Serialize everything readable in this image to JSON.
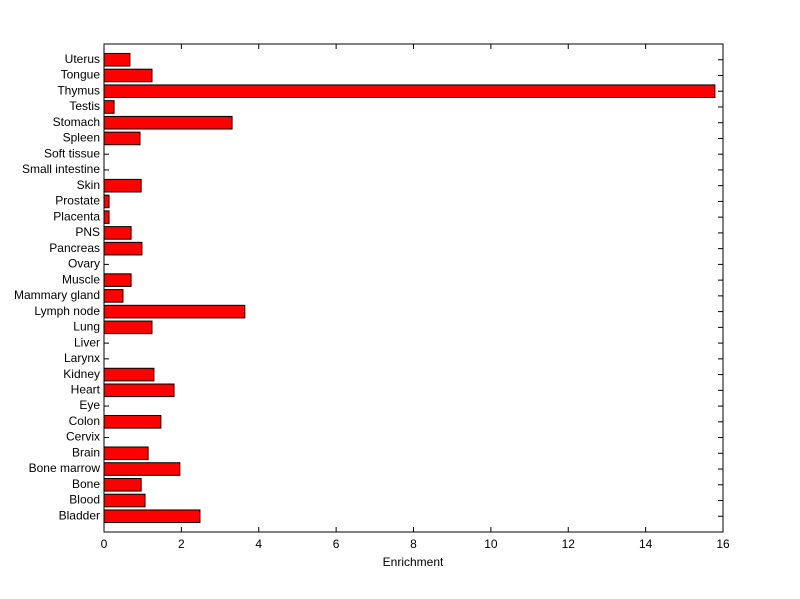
{
  "chart_data": {
    "type": "barh",
    "xlabel": "Enrichment",
    "categories": [
      "Uterus",
      "Tongue",
      "Thymus",
      "Testis",
      "Stomach",
      "Spleen",
      "Soft tissue",
      "Small intestine",
      "Skin",
      "Prostate",
      "Placenta",
      "PNS",
      "Pancreas",
      "Ovary",
      "Muscle",
      "Mammary gland",
      "Lymph node",
      "Lung",
      "Liver",
      "Larynx",
      "Kidney",
      "Heart",
      "Eye",
      "Colon",
      "Cervix",
      "Brain",
      "Bone marrow",
      "Bone",
      "Blood",
      "Bladder"
    ],
    "values": [
      0.67,
      1.24,
      15.79,
      0.26,
      3.31,
      0.93,
      0,
      0,
      0.96,
      0.13,
      0.13,
      0.7,
      0.98,
      0,
      0.7,
      0.49,
      3.64,
      1.24,
      0,
      0,
      1.29,
      1.81,
      0,
      1.47,
      0,
      1.14,
      1.96,
      0.96,
      1.06,
      2.48
    ],
    "color": "#ff0000",
    "xlim": [
      0,
      16
    ],
    "xticks": [
      0,
      2,
      4,
      6,
      8,
      10,
      12,
      14,
      16
    ]
  }
}
